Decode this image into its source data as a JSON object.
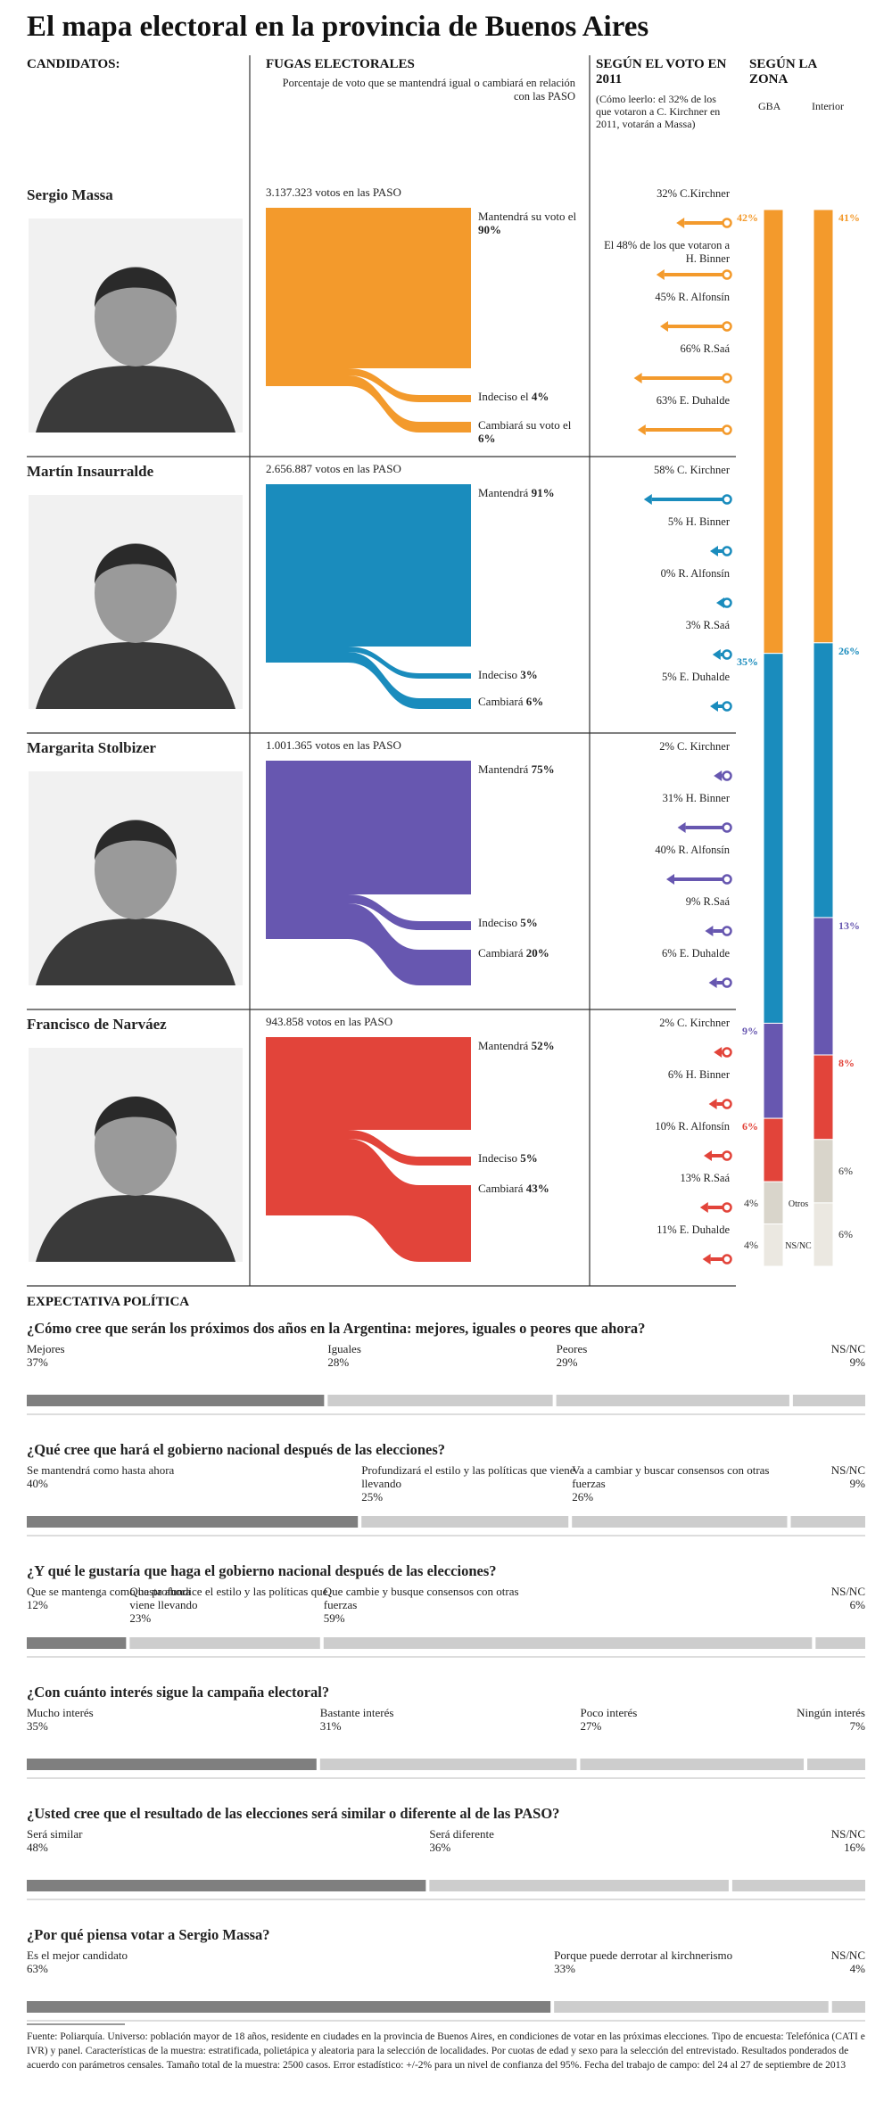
{
  "title": "El mapa electoral en la provincia de Buenos Aires",
  "headers": {
    "candidates": "CANDIDATOS:",
    "flows": "FUGAS ELECTORALES",
    "flows_sub": "Porcentaje de voto que se mantendrá igual o cambiará en relación con las PASO",
    "vote2011": "SEGÚN EL VOTO EN 2011",
    "vote2011_sub": "(Cómo leerlo: el 32% de los que votaron a C. Kirchner en 2011, votarán a Massa)",
    "zone": "SEGÚN LA ZONA",
    "gba": "GBA",
    "interior": "Interior"
  },
  "candidates": [
    {
      "name": "Sergio Massa",
      "color": "#f39a2c",
      "paso": "3.137.323 votos en las PASO",
      "flows": [
        {
          "label": "Mantendrá su voto el",
          "value": 90,
          "value_label": "90%"
        },
        {
          "label": "Indeciso el",
          "value": 4,
          "value_label": "4%"
        },
        {
          "label": "Cambiará su voto el",
          "value": 6,
          "value_label": "6%"
        }
      ],
      "vote2011": [
        {
          "value": 32,
          "label": "32% C.Kirchner"
        },
        {
          "value": 48,
          "label": "El 48% de los que votaron a H. Binner"
        },
        {
          "value": 45,
          "label": "45% R. Alfonsín"
        },
        {
          "value": 66,
          "label": "66% R.Saá"
        },
        {
          "value": 63,
          "label": "63% E. Duhalde"
        }
      ],
      "zone": {
        "gba": 42,
        "gba_label": "42%",
        "interior": 41,
        "interior_label": "41%"
      }
    },
    {
      "name": "Martín Insaurralde",
      "color": "#1a8cbd",
      "paso": "2.656.887 votos en las PASO",
      "flows": [
        {
          "label": "Mantendrá",
          "value": 91,
          "value_label": "91%"
        },
        {
          "label": "Indeciso",
          "value": 3,
          "value_label": "3%"
        },
        {
          "label": "Cambiará",
          "value": 6,
          "value_label": "6%"
        }
      ],
      "vote2011": [
        {
          "value": 58,
          "label": "58% C. Kirchner"
        },
        {
          "value": 5,
          "label": "5% H. Binner"
        },
        {
          "value": 0,
          "label": "0% R. Alfonsín"
        },
        {
          "value": 3,
          "label": "3% R.Saá"
        },
        {
          "value": 5,
          "label": "5% E. Duhalde"
        }
      ],
      "zone": {
        "gba": 35,
        "gba_label": "35%",
        "interior": 26,
        "interior_label": "26%"
      }
    },
    {
      "name": "Margarita Stolbizer",
      "color": "#6757b0",
      "paso": "1.001.365 votos en las PASO",
      "flows": [
        {
          "label": "Mantendrá",
          "value": 75,
          "value_label": "75%"
        },
        {
          "label": "Indeciso",
          "value": 5,
          "value_label": "5%"
        },
        {
          "label": "Cambiará",
          "value": 20,
          "value_label": "20%"
        }
      ],
      "vote2011": [
        {
          "value": 2,
          "label": "2% C. Kirchner"
        },
        {
          "value": 31,
          "label": "31% H. Binner"
        },
        {
          "value": 40,
          "label": "40% R. Alfonsín"
        },
        {
          "value": 9,
          "label": "9% R.Saá"
        },
        {
          "value": 6,
          "label": "6% E. Duhalde"
        }
      ],
      "zone": {
        "gba": 9,
        "gba_label": "9%",
        "interior": 13,
        "interior_label": "13%"
      }
    },
    {
      "name": "Francisco de Narváez",
      "color": "#e2443a",
      "paso": "943.858 votos en las PASO",
      "flows": [
        {
          "label": "Mantendrá",
          "value": 52,
          "value_label": "52%"
        },
        {
          "label": "Indeciso",
          "value": 5,
          "value_label": "5%"
        },
        {
          "label": "Cambiará",
          "value": 43,
          "value_label": "43%"
        }
      ],
      "vote2011": [
        {
          "value": 2,
          "label": "2% C. Kirchner"
        },
        {
          "value": 6,
          "label": "6% H. Binner"
        },
        {
          "value": 10,
          "label": "10% R. Alfonsín"
        },
        {
          "value": 13,
          "label": "13% R.Saá"
        },
        {
          "value": 11,
          "label": "11% E. Duhalde"
        }
      ],
      "zone": {
        "gba": 6,
        "gba_label": "6%",
        "interior": 8,
        "interior_label": "8%"
      }
    }
  ],
  "zone_others": [
    {
      "name": "Otros",
      "color": "#d9d5cb",
      "gba": 4,
      "gba_label": "4%",
      "interior": 6,
      "interior_label": "6%"
    },
    {
      "name": "NS/NC",
      "color": "#ebe8e1",
      "gba": 4,
      "gba_label": "4%",
      "interior": 6,
      "interior_label": "6%"
    }
  ],
  "expectations": {
    "title": "EXPECTATIVA POLÍTICA",
    "colors": [
      "#7f7f7f",
      "#cdcdcd"
    ],
    "questions": [
      {
        "question": "¿Cómo cree que serán los próximos dos años en la Argentina: mejores, iguales o peores que ahora?",
        "options": [
          {
            "label": "Mejores",
            "value": 37,
            "value_label": "37%"
          },
          {
            "label": "Iguales",
            "value": 28,
            "value_label": "28%"
          },
          {
            "label": "Peores",
            "value": 29,
            "value_label": "29%"
          },
          {
            "label": "NS/NC",
            "value": 9,
            "value_label": "9%"
          }
        ]
      },
      {
        "question": "¿Qué cree que hará el gobierno nacional después de las elecciones?",
        "options": [
          {
            "label": "Se mantendrá como hasta ahora",
            "value": 40,
            "value_label": "40%"
          },
          {
            "label": "Profundizará el estilo y las políticas que viene llevando",
            "value": 25,
            "value_label": "25%"
          },
          {
            "label": "Va a cambiar y buscar consensos con otras fuerzas",
            "value": 26,
            "value_label": "26%"
          },
          {
            "label": "NS/NC",
            "value": 9,
            "value_label": "9%"
          }
        ]
      },
      {
        "question": "¿Y qué le gustaría que haga el gobierno nacional después de las elecciones?",
        "options": [
          {
            "label": "Que se mantenga como hasta ahora",
            "value": 12,
            "value_label": "12%"
          },
          {
            "label": "Que profundice el estilo y las políticas que viene llevando",
            "value": 23,
            "value_label": "23%"
          },
          {
            "label": "Que cambie y busque consensos con otras fuerzas",
            "value": 59,
            "value_label": "59%"
          },
          {
            "label": "NS/NC",
            "value": 6,
            "value_label": "6%"
          }
        ]
      },
      {
        "question": "¿Con cuánto interés sigue la campaña electoral?",
        "options": [
          {
            "label": "Mucho interés",
            "value": 35,
            "value_label": "35%"
          },
          {
            "label": "Bastante interés",
            "value": 31,
            "value_label": "31%"
          },
          {
            "label": "Poco interés",
            "value": 27,
            "value_label": "27%"
          },
          {
            "label": "Ningún interés",
            "value": 7,
            "value_label": "7%"
          }
        ]
      },
      {
        "question": "¿Usted cree que el resultado de las elecciones será similar o diferente al de las PASO?",
        "options": [
          {
            "label": "Será similar",
            "value": 48,
            "value_label": "48%"
          },
          {
            "label": "Será diferente",
            "value": 36,
            "value_label": "36%"
          },
          {
            "label": "NS/NC",
            "value": 16,
            "value_label": "16%"
          }
        ]
      },
      {
        "question": "¿Por qué piensa votar a Sergio Massa?",
        "options": [
          {
            "label": "Es el mejor candidato",
            "value": 63,
            "value_label": "63%"
          },
          {
            "label": "Porque puede derrotar al kirchnerismo",
            "value": 33,
            "value_label": "33%"
          },
          {
            "label": "NS/NC",
            "value": 4,
            "value_label": "4%"
          }
        ]
      }
    ]
  },
  "footnote": "Fuente: Poliarquía. Universo: población mayor de 18 años, residente en ciudades en la provincia de Buenos Aires, en condiciones de votar en las próximas elecciones. Tipo de encuesta: Telefónica (CATI e IVR) y panel. Características de la muestra: estratificada, polietápica y aleatoria para la selección de localidades. Por cuotas de edad y sexo para la selección del entrevistado. Resultados ponderados de acuerdo con parámetros censales. Tamaño total de la muestra: 2500 casos. Error estadístico: +/-2% para un nivel de confianza del 95%. Fecha del trabajo de campo: del 24 al 27 de septiembre de 2013"
}
